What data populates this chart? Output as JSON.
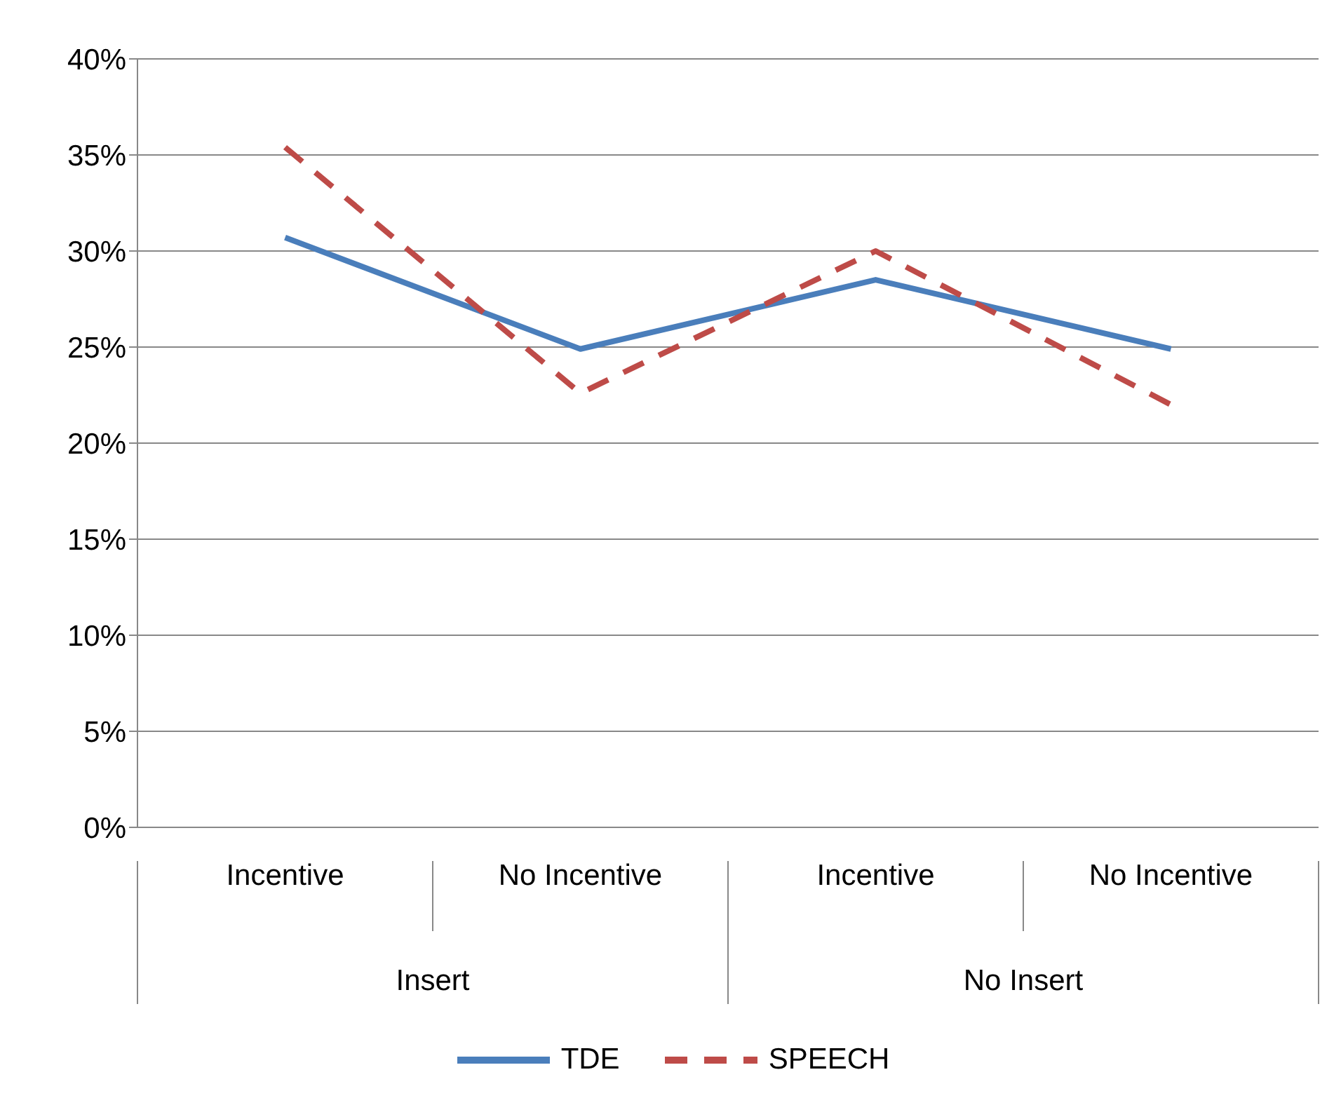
{
  "chart_data": {
    "type": "line",
    "categories": [
      "Incentive",
      "No Incentive",
      "Incentive",
      "No Incentive"
    ],
    "series": [
      {
        "name": "TDE",
        "color": "#4a7ebb",
        "values": [
          30.7,
          24.9,
          28.5,
          24.9
        ],
        "line_style": "solid"
      },
      {
        "name": "SPEECH",
        "color": "#be4b48",
        "values": [
          35.4,
          22.6,
          30.0,
          22.0
        ],
        "line_style": "dashed"
      }
    ],
    "ylim": [
      0,
      40
    ],
    "yticks": [
      {
        "value": 0,
        "label": "0%"
      },
      {
        "value": 5,
        "label": "5%"
      },
      {
        "value": 10,
        "label": "10%"
      },
      {
        "value": 15,
        "label": "15%"
      },
      {
        "value": 20,
        "label": "20%"
      },
      {
        "value": 25,
        "label": "25%"
      },
      {
        "value": 30,
        "label": "30%"
      },
      {
        "value": 35,
        "label": "35%"
      },
      {
        "value": 40,
        "label": "40%"
      }
    ],
    "annotations": [
      "Insert",
      "No Insert"
    ],
    "grid": "y",
    "legend": "bottom",
    "marker": "none"
  }
}
